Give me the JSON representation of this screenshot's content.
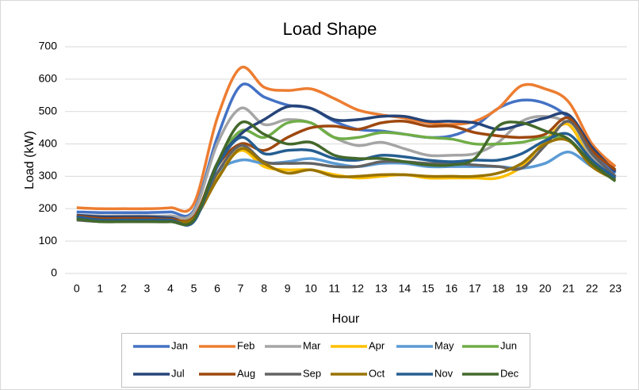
{
  "chart_data": {
    "type": "line",
    "title": "Load Shape",
    "x_label": "Hour",
    "y_label": "Load (kW)",
    "x": [
      0,
      1,
      2,
      3,
      4,
      5,
      6,
      7,
      8,
      9,
      10,
      11,
      12,
      13,
      14,
      15,
      16,
      17,
      18,
      19,
      20,
      21,
      22,
      23
    ],
    "ylim": [
      0,
      700
    ],
    "yticks": [
      0,
      100,
      200,
      300,
      400,
      500,
      600,
      700
    ],
    "grid": true,
    "smooth": true,
    "legend": "bottom",
    "series": [
      {
        "name": "Jan",
        "color": "#4472C4",
        "values": [
          190,
          188,
          188,
          188,
          190,
          195,
          420,
          580,
          545,
          520,
          510,
          470,
          445,
          440,
          430,
          420,
          425,
          455,
          510,
          535,
          525,
          480,
          380,
          310
        ]
      },
      {
        "name": "Feb",
        "color": "#ED7D31",
        "values": [
          203,
          200,
          200,
          200,
          203,
          215,
          480,
          635,
          575,
          565,
          570,
          540,
          505,
          490,
          480,
          465,
          460,
          470,
          510,
          580,
          570,
          530,
          400,
          330
        ]
      },
      {
        "name": "Mar",
        "color": "#A5A5A5",
        "values": [
          180,
          178,
          178,
          178,
          178,
          190,
          400,
          510,
          460,
          475,
          465,
          420,
          395,
          405,
          385,
          365,
          365,
          370,
          405,
          470,
          485,
          460,
          360,
          300
        ]
      },
      {
        "name": "Apr",
        "color": "#FFC000",
        "values": [
          170,
          165,
          165,
          165,
          165,
          175,
          300,
          380,
          330,
          320,
          320,
          305,
          295,
          300,
          305,
          295,
          295,
          295,
          295,
          330,
          410,
          460,
          340,
          290
        ]
      },
      {
        "name": "May",
        "color": "#5B9BD5",
        "values": [
          172,
          165,
          165,
          165,
          165,
          175,
          310,
          350,
          340,
          345,
          355,
          340,
          330,
          340,
          340,
          330,
          330,
          330,
          330,
          325,
          340,
          375,
          330,
          300
        ]
      },
      {
        "name": "Jun",
        "color": "#70AD47",
        "values": [
          170,
          162,
          162,
          162,
          162,
          170,
          340,
          440,
          420,
          465,
          465,
          420,
          420,
          435,
          430,
          420,
          415,
          400,
          400,
          405,
          420,
          410,
          340,
          295
        ]
      },
      {
        "name": "Jul",
        "color": "#264478",
        "values": [
          180,
          175,
          175,
          175,
          172,
          170,
          340,
          430,
          475,
          515,
          510,
          475,
          475,
          485,
          485,
          470,
          470,
          465,
          445,
          460,
          480,
          490,
          390,
          315
        ]
      },
      {
        "name": "Aug",
        "color": "#9E480E",
        "values": [
          178,
          170,
          170,
          170,
          168,
          175,
          330,
          400,
          380,
          420,
          450,
          455,
          445,
          465,
          470,
          455,
          455,
          435,
          425,
          420,
          430,
          480,
          380,
          320
        ]
      },
      {
        "name": "Sep",
        "color": "#636363",
        "values": [
          165,
          160,
          160,
          160,
          160,
          170,
          310,
          395,
          345,
          340,
          340,
          330,
          330,
          345,
          345,
          340,
          340,
          335,
          330,
          325,
          395,
          470,
          370,
          300
        ]
      },
      {
        "name": "Oct",
        "color": "#997300",
        "values": [
          170,
          162,
          162,
          162,
          162,
          170,
          290,
          385,
          340,
          310,
          320,
          300,
          300,
          305,
          305,
          300,
          300,
          300,
          310,
          340,
          400,
          410,
          330,
          290
        ]
      },
      {
        "name": "Nov",
        "color": "#255E91",
        "values": [
          175,
          165,
          165,
          165,
          165,
          160,
          330,
          420,
          370,
          380,
          380,
          355,
          350,
          365,
          360,
          350,
          345,
          350,
          350,
          370,
          410,
          430,
          350,
          295
        ]
      },
      {
        "name": "Dec",
        "color": "#43682B",
        "values": [
          168,
          160,
          160,
          160,
          160,
          165,
          340,
          465,
          430,
          400,
          405,
          365,
          355,
          355,
          345,
          335,
          335,
          355,
          455,
          465,
          440,
          415,
          340,
          285
        ]
      }
    ]
  }
}
